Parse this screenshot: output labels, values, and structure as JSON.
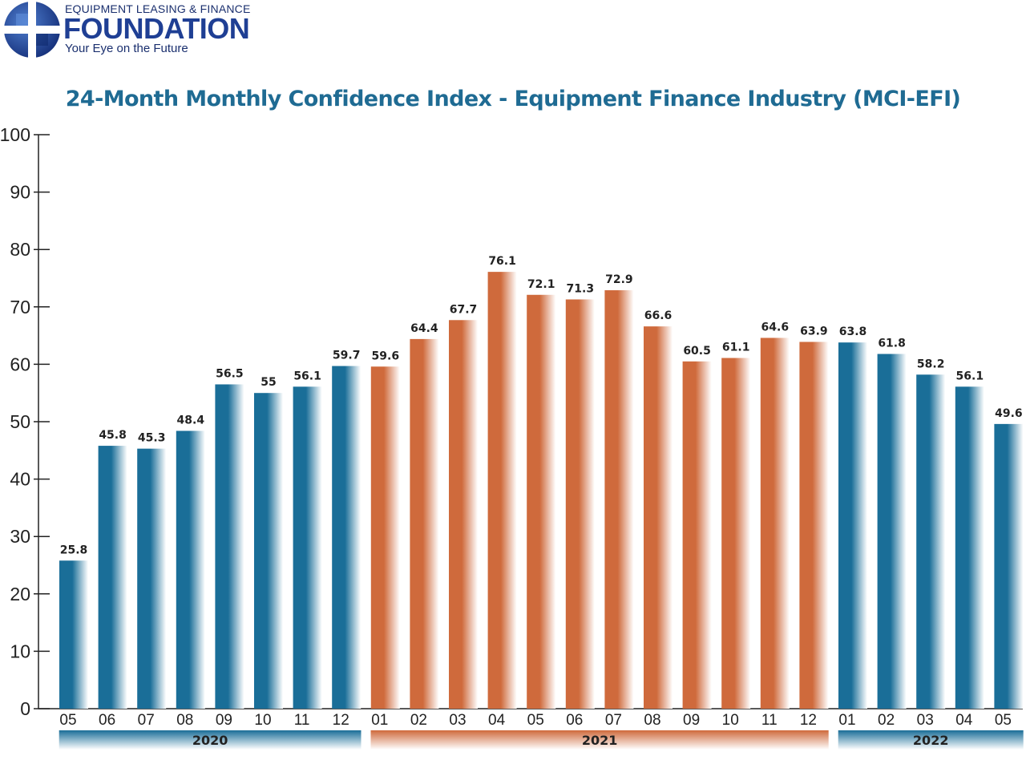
{
  "logo": {
    "line1": "EQUIPMENT LEASING & FINANCE",
    "line2": "FOUNDATION",
    "tagline": "Your Eye on the Future"
  },
  "colors": {
    "blue": "#1a6e98",
    "orange": "#cf6a3c",
    "title": "#1f6b93"
  },
  "chart_data": {
    "type": "bar",
    "title": "24-Month Monthly Confidence Index - Equipment Finance Industry (MCI-EFI)",
    "xlabel": "",
    "ylabel": "",
    "ylim": [
      0,
      100
    ],
    "yticks": [
      0,
      10,
      20,
      30,
      40,
      50,
      60,
      70,
      80,
      90,
      100
    ],
    "grid": false,
    "categories": [
      "05",
      "06",
      "07",
      "08",
      "09",
      "10",
      "11",
      "12",
      "01",
      "02",
      "03",
      "04",
      "05",
      "06",
      "07",
      "08",
      "09",
      "10",
      "11",
      "12",
      "01",
      "02",
      "03",
      "04",
      "05"
    ],
    "values": [
      25.8,
      45.8,
      45.3,
      48.4,
      56.5,
      55,
      56.1,
      59.7,
      59.6,
      64.4,
      67.7,
      76.1,
      72.1,
      71.3,
      72.9,
      66.6,
      60.5,
      61.1,
      64.6,
      63.9,
      63.8,
      61.8,
      58.2,
      56.1,
      49.6
    ],
    "data_labels": [
      "25.8",
      "45.8",
      "45.3",
      "48.4",
      "56.5",
      "55",
      "56.1",
      "59.7",
      "59.6",
      "64.4",
      "67.7",
      "76.1",
      "72.1",
      "71.3",
      "72.9",
      "66.6",
      "60.5",
      "61.1",
      "64.6",
      "63.9",
      "63.8",
      "61.8",
      "58.2",
      "56.1",
      "49.6"
    ],
    "groups": [
      {
        "label": "2020",
        "start": 0,
        "end": 7,
        "color": "blue"
      },
      {
        "label": "2021",
        "start": 8,
        "end": 19,
        "color": "orange"
      },
      {
        "label": "2022",
        "start": 20,
        "end": 24,
        "color": "blue"
      }
    ]
  }
}
